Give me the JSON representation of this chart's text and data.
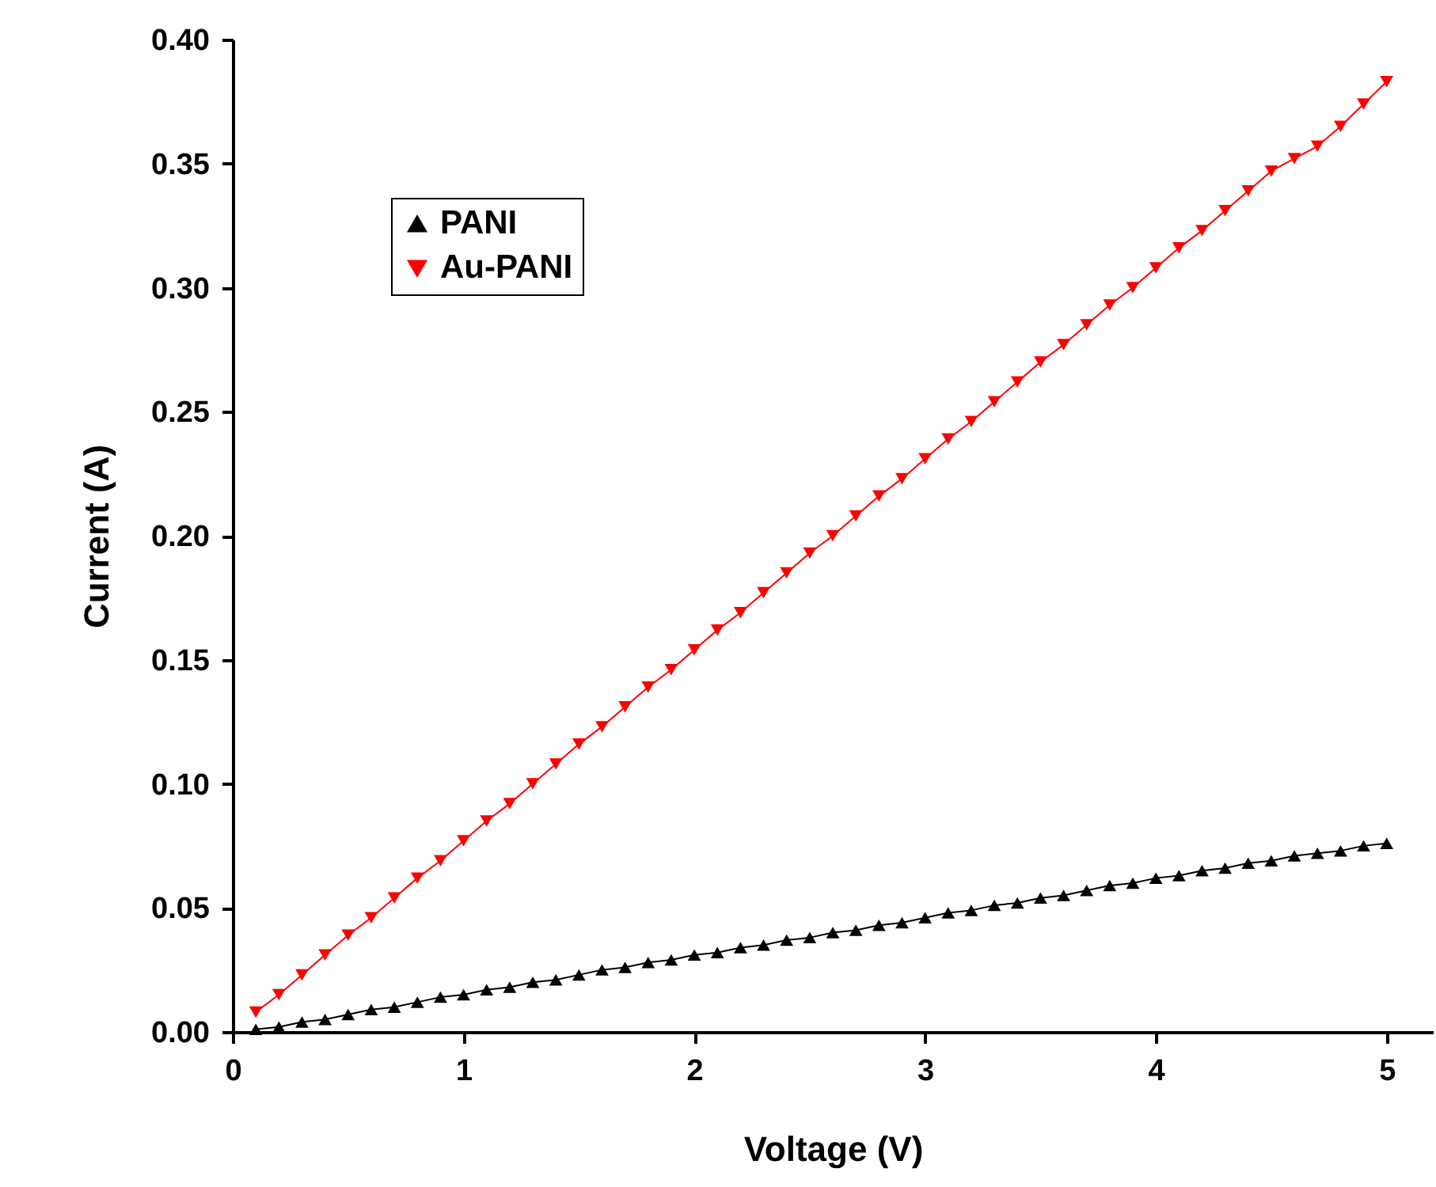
{
  "chart_data": {
    "type": "line",
    "xlabel": "Voltage (V)",
    "ylabel": "Current (A)",
    "x": [
      0.1,
      0.2,
      0.3,
      0.4,
      0.5,
      0.6,
      0.7,
      0.8,
      0.9,
      1.0,
      1.1,
      1.2,
      1.3,
      1.4,
      1.5,
      1.6,
      1.7,
      1.8,
      1.9,
      2.0,
      2.1,
      2.2,
      2.3,
      2.4,
      2.5,
      2.6,
      2.7,
      2.8,
      2.9,
      3.0,
      3.1,
      3.2,
      3.3,
      3.4,
      3.5,
      3.6,
      3.7,
      3.8,
      3.9,
      4.0,
      4.1,
      4.2,
      4.3,
      4.4,
      4.5,
      4.6,
      4.7,
      4.8,
      4.9,
      5.0
    ],
    "series": [
      {
        "name": "PANI",
        "color": "#000000",
        "marker": "triangle",
        "values": [
          0.001,
          0.002,
          0.004,
          0.005,
          0.007,
          0.009,
          0.01,
          0.012,
          0.014,
          0.015,
          0.017,
          0.018,
          0.02,
          0.021,
          0.023,
          0.025,
          0.026,
          0.028,
          0.029,
          0.031,
          0.032,
          0.034,
          0.035,
          0.037,
          0.038,
          0.04,
          0.041,
          0.043,
          0.044,
          0.046,
          0.048,
          0.049,
          0.051,
          0.052,
          0.054,
          0.055,
          0.057,
          0.059,
          0.06,
          0.062,
          0.063,
          0.065,
          0.066,
          0.068,
          0.069,
          0.071,
          0.072,
          0.073,
          0.075,
          0.076
        ]
      },
      {
        "name": "Au-PANI",
        "color": "#ff0000",
        "marker": "triangle-down",
        "values": [
          0.008,
          0.015,
          0.023,
          0.031,
          0.039,
          0.046,
          0.054,
          0.062,
          0.069,
          0.077,
          0.085,
          0.092,
          0.1,
          0.108,
          0.116,
          0.123,
          0.131,
          0.139,
          0.146,
          0.154,
          0.162,
          0.169,
          0.177,
          0.185,
          0.193,
          0.2,
          0.208,
          0.216,
          0.223,
          0.231,
          0.239,
          0.246,
          0.254,
          0.262,
          0.27,
          0.277,
          0.285,
          0.293,
          0.3,
          0.308,
          0.316,
          0.323,
          0.331,
          0.339,
          0.347,
          0.352,
          0.357,
          0.365,
          0.374,
          0.383
        ]
      }
    ],
    "xlim": [
      0,
      5.2
    ],
    "xticks": [
      0,
      1,
      2,
      3,
      4,
      5
    ],
    "ylim": [
      0,
      0.4
    ],
    "yticks": [
      {
        "value": 0,
        "label": "0.00"
      },
      {
        "value": 0.05,
        "label": "0.05"
      },
      {
        "value": 0.1,
        "label": "0.10"
      },
      {
        "value": 0.15,
        "label": "0.15"
      },
      {
        "value": 0.2,
        "label": "0.20"
      },
      {
        "value": 0.25,
        "label": "0.25"
      },
      {
        "value": 0.3,
        "label": "0.30"
      },
      {
        "value": 0.35,
        "label": "0.35"
      },
      {
        "value": 0.4,
        "label": "0.40"
      }
    ],
    "grid": false,
    "legend": "top left",
    "line_style": "solid"
  }
}
